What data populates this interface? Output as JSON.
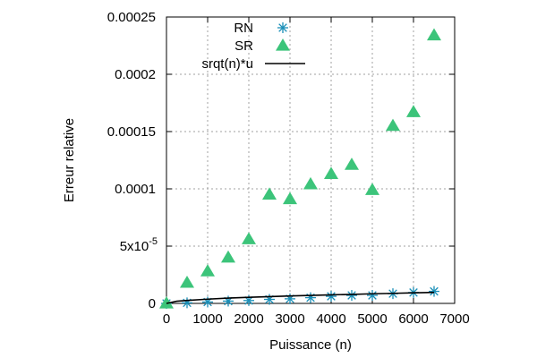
{
  "chart_data": {
    "type": "scatter",
    "title": "",
    "xlabel": "Puissance (n)",
    "ylabel": "Erreur relative",
    "xlim": [
      0,
      7000
    ],
    "ylim": [
      0,
      0.00025
    ],
    "x_ticks": [
      {
        "value": 0,
        "label": "0"
      },
      {
        "value": 1000,
        "label": "1000"
      },
      {
        "value": 2000,
        "label": "2000"
      },
      {
        "value": 3000,
        "label": "3000"
      },
      {
        "value": 4000,
        "label": "4000"
      },
      {
        "value": 5000,
        "label": "5000"
      },
      {
        "value": 6000,
        "label": "6000"
      },
      {
        "value": 7000,
        "label": "7000"
      }
    ],
    "y_ticks": [
      {
        "value": 0,
        "label": "0"
      },
      {
        "value": 5e-05,
        "label": "5x10",
        "sup": "-5"
      },
      {
        "value": 0.0001,
        "label": "0.0001"
      },
      {
        "value": 0.00015,
        "label": "0.00015"
      },
      {
        "value": 0.0002,
        "label": "0.0002"
      },
      {
        "value": 0.00025,
        "label": "0.00025"
      }
    ],
    "grid": true,
    "legend_position": "top-left",
    "series": [
      {
        "name": "RN",
        "marker": "asterisk",
        "color": "#1a8fb8",
        "x": [
          0,
          500,
          1000,
          1500,
          2000,
          2500,
          3000,
          3500,
          4000,
          4500,
          5000,
          5500,
          6000,
          6500
        ],
        "y": [
          0,
          5e-07,
          1.2e-06,
          2e-06,
          2.5e-06,
          3.5e-06,
          4e-06,
          5e-06,
          6.2e-06,
          7e-06,
          7e-06,
          8.5e-06,
          9.5e-06,
          1.05e-05
        ]
      },
      {
        "name": "SR",
        "marker": "triangle",
        "color": "#3cc47a",
        "x": [
          0,
          500,
          1000,
          1500,
          2000,
          2500,
          3000,
          3500,
          4000,
          4500,
          5000,
          5500,
          6000,
          6500
        ],
        "y": [
          0,
          1.8e-05,
          2.8e-05,
          4e-05,
          5.6e-05,
          9.5e-05,
          9.1e-05,
          0.000104,
          0.000113,
          0.000121,
          9.9e-05,
          0.000155,
          0.000167,
          0.000234
        ]
      },
      {
        "name": "srqt(n)*u",
        "marker": "line",
        "color": "#000000",
        "x": [
          0,
          250,
          500,
          1000,
          1500,
          2000,
          2500,
          3000,
          3500,
          4000,
          4500,
          5000,
          5500,
          6000,
          6500
        ],
        "y": [
          0,
          1.9e-06,
          2.6e-06,
          3.7e-06,
          4.6e-06,
          5.3e-06,
          5.9e-06,
          6.5e-06,
          7e-06,
          7.5e-06,
          7.9e-06,
          8.4e-06,
          8.8e-06,
          9.2e-06,
          9.6e-06
        ]
      }
    ]
  }
}
